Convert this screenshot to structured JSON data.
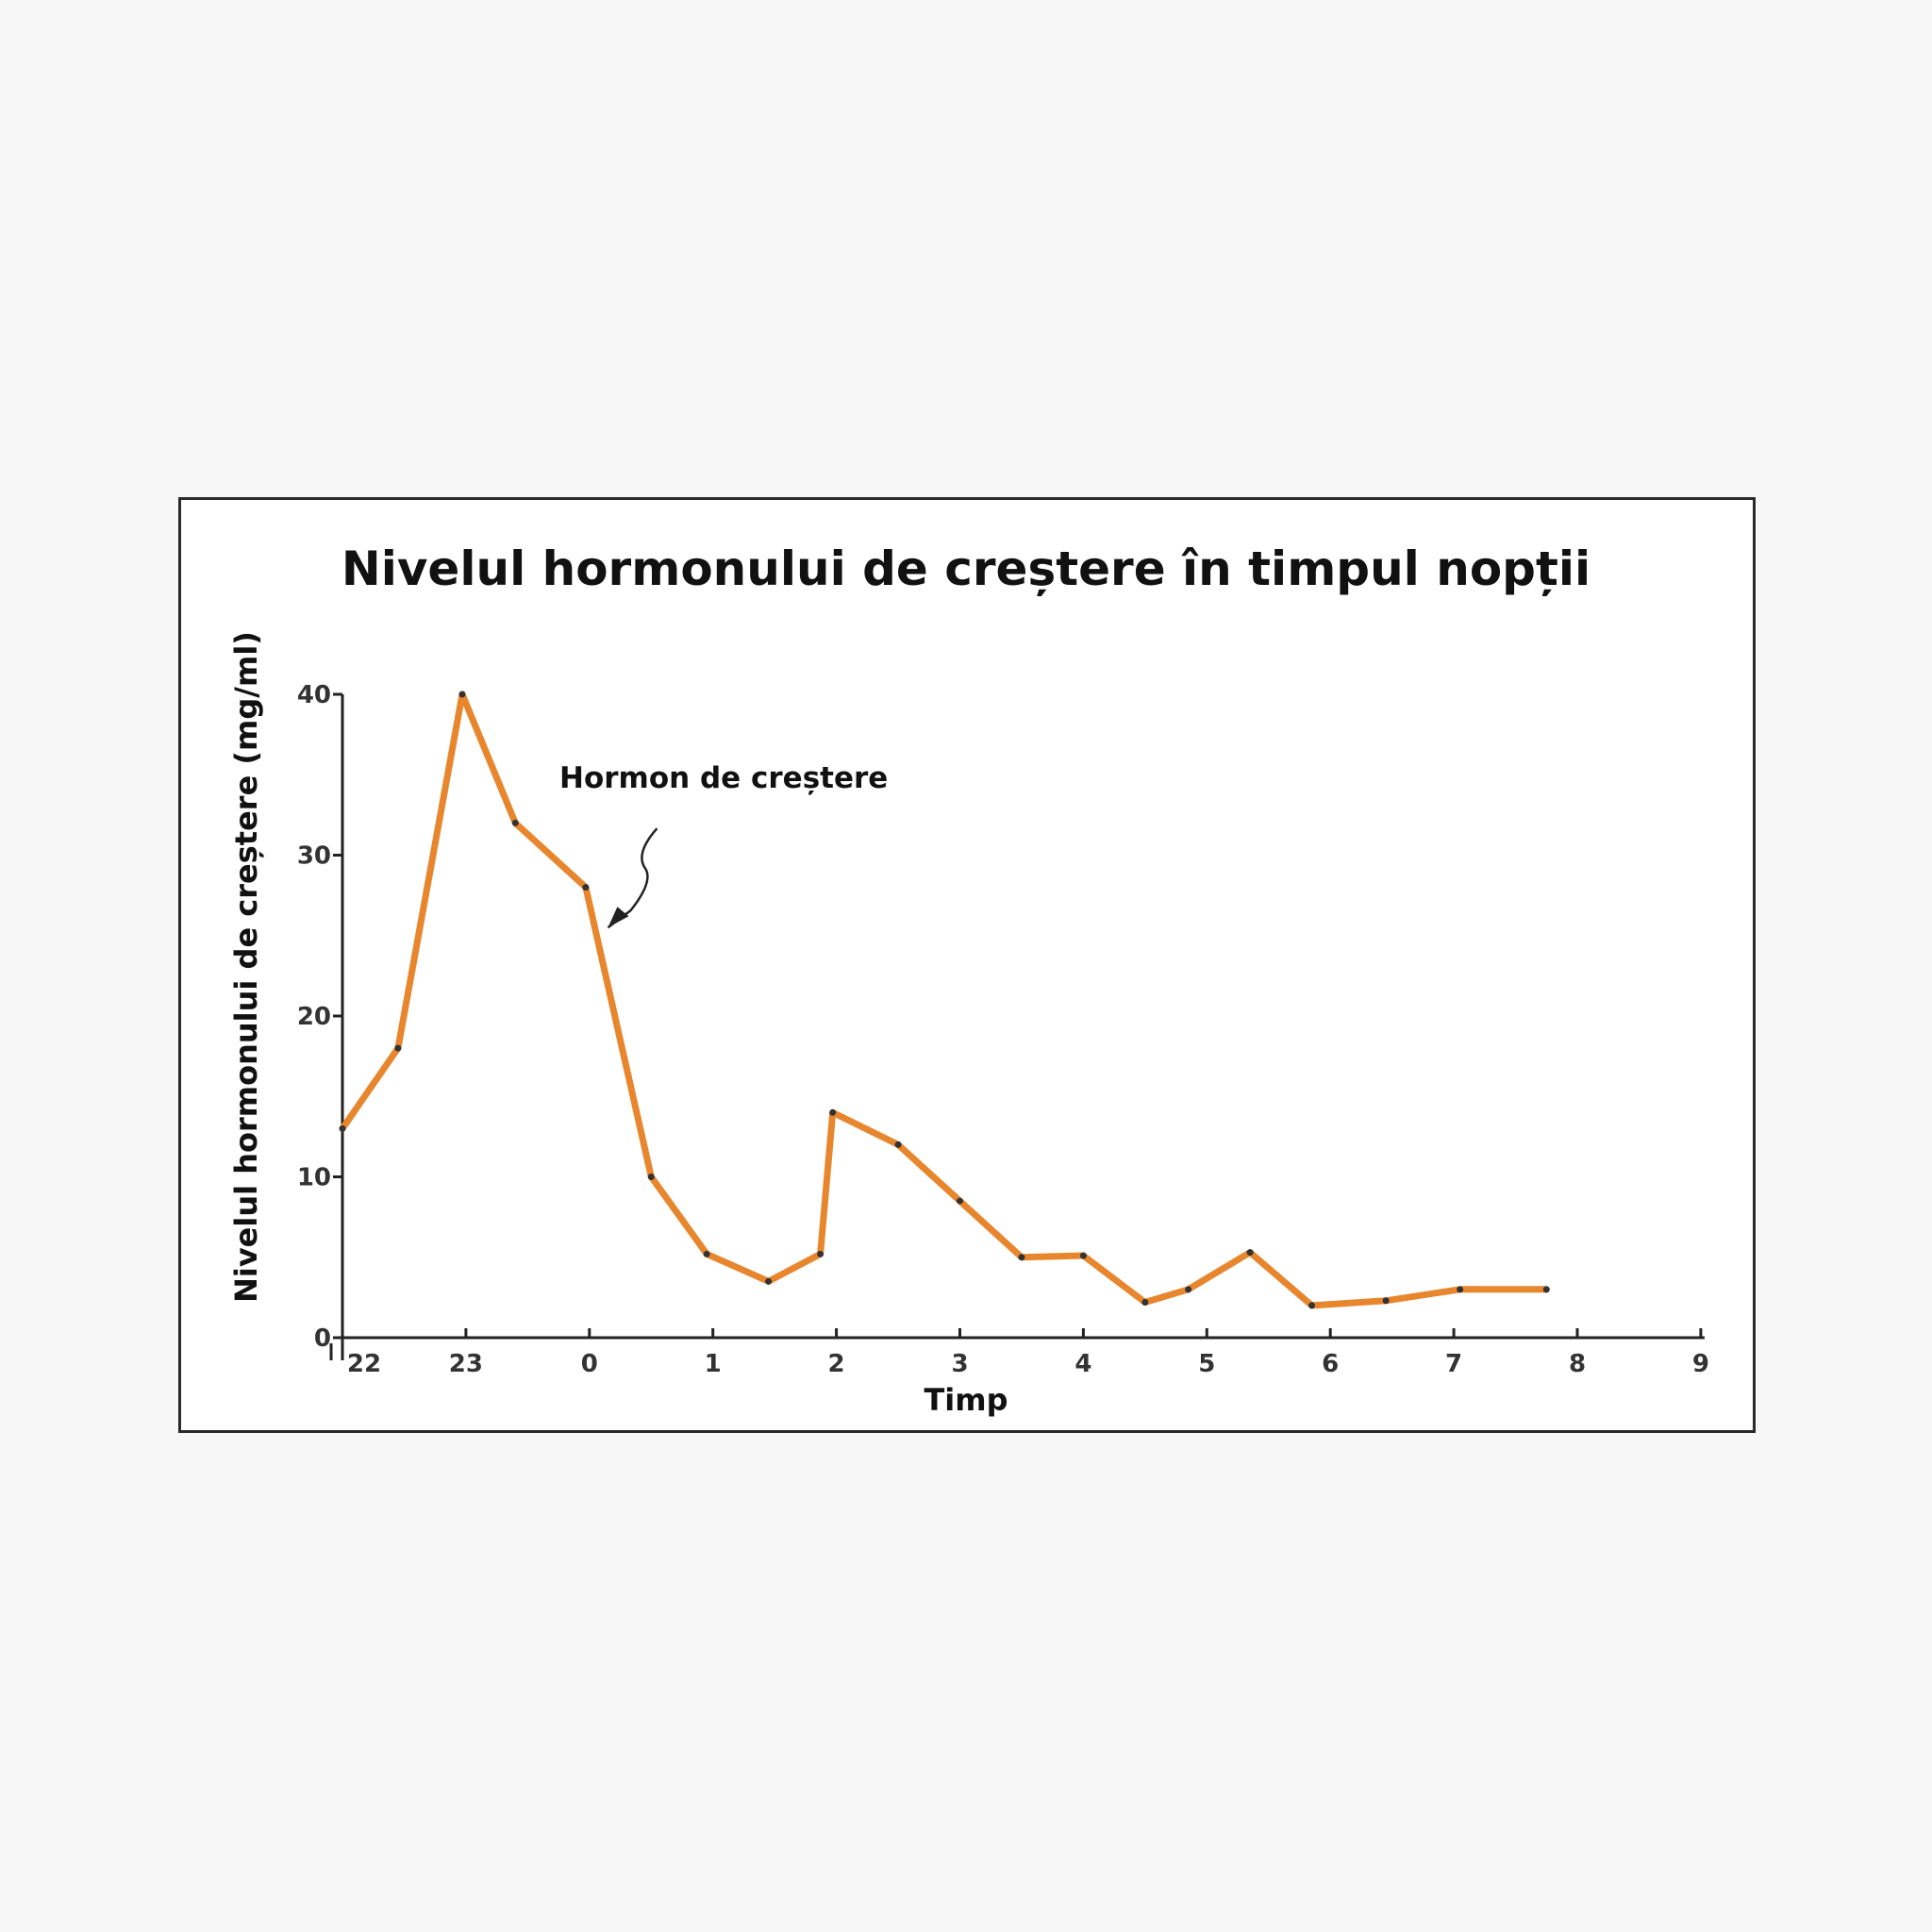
{
  "chart_data": {
    "type": "line",
    "title": "Nivelul hormonului de creștere în timpul nopții",
    "xlabel": "Timp",
    "ylabel": "Nivelul hormonului de creștere (mg/ml)",
    "xlim": [
      21.8,
      33
    ],
    "ylim": [
      0,
      40
    ],
    "x_ticks": [
      22,
      23,
      24,
      25,
      26,
      27,
      28,
      29,
      30,
      31,
      32,
      33
    ],
    "x_tick_labels": [
      "22",
      "23",
      "0",
      "1",
      "2",
      "3",
      "4",
      "5",
      "6",
      "7",
      "8",
      "9"
    ],
    "y_ticks": [
      0,
      10,
      20,
      30,
      40
    ],
    "y_tick_labels": [
      "0",
      "10",
      "20",
      "30",
      "40"
    ],
    "grid": false,
    "series": [
      {
        "color": "#e8862e",
        "x": [
          22.0,
          22.45,
          22.97,
          23.4,
          23.97,
          24.5,
          24.95,
          25.45,
          25.87,
          25.97,
          26.5,
          27.0,
          27.5,
          28.0,
          28.5,
          28.85,
          29.35,
          29.85,
          30.45,
          31.05,
          31.75
        ],
        "y": [
          13,
          18,
          40,
          32,
          28,
          10,
          5.2,
          3.5,
          5.2,
          14,
          12,
          8.5,
          5,
          5.1,
          2.2,
          3,
          5.3,
          2,
          2.3,
          3,
          3
        ]
      }
    ],
    "annotations": [
      {
        "text": "Hormon de creștere",
        "points_to": {
          "x": 24.15,
          "y": 25.5
        }
      }
    ]
  }
}
